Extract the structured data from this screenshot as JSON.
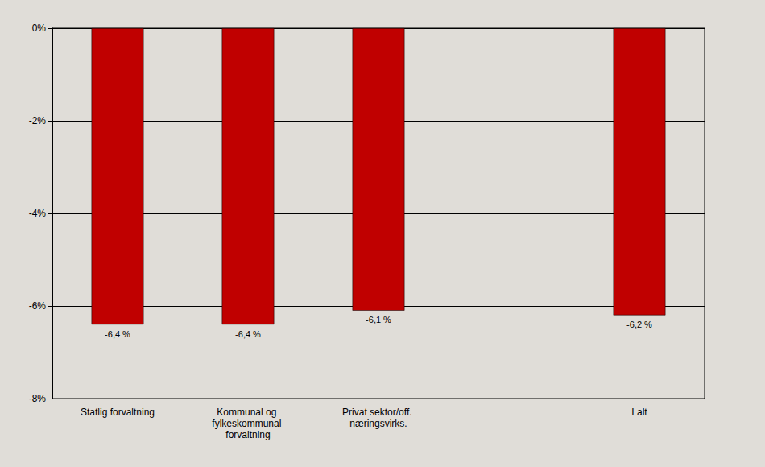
{
  "chart_data": {
    "type": "bar",
    "categories": [
      "Statlig forvaltning",
      "Kommunal og fylkeskommunal forvaltning",
      "Privat sektor/off. næringsvirks.",
      null,
      "I alt"
    ],
    "values": [
      -6.4,
      -6.4,
      -6.1,
      null,
      -6.2
    ],
    "value_labels": [
      "-6,4 %",
      "-6,4 %",
      "-6,1 %",
      null,
      "-6,2 %"
    ],
    "color": "#c00000",
    "ylim": [
      -8,
      0
    ],
    "yticks": [
      {
        "value": -8,
        "label": "-8%"
      },
      {
        "value": -6,
        "label": "-6%"
      },
      {
        "value": -4,
        "label": "-4%"
      },
      {
        "value": -2,
        "label": "-2%"
      },
      {
        "value": 0,
        "label": "0%"
      }
    ],
    "grid": true,
    "data_labels": true
  }
}
